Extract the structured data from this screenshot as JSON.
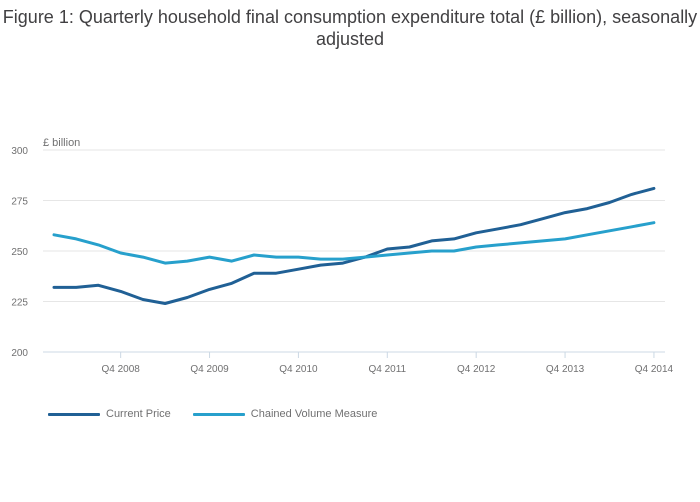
{
  "chart_data": {
    "type": "line",
    "title": "Figure 1: Quarterly household final consumption expenditure total (£ billion), seasonally adjusted",
    "ylabel": "£ billion",
    "xlabel": "",
    "ylim": [
      200,
      300
    ],
    "yticks": [
      200,
      225,
      250,
      275,
      300
    ],
    "grid": true,
    "legend_position": "bottom-left",
    "x": [
      "Q1 2008",
      "Q2 2008",
      "Q3 2008",
      "Q4 2008",
      "Q1 2009",
      "Q2 2009",
      "Q3 2009",
      "Q4 2009",
      "Q1 2010",
      "Q2 2010",
      "Q3 2010",
      "Q4 2010",
      "Q1 2011",
      "Q2 2011",
      "Q3 2011",
      "Q4 2011",
      "Q1 2012",
      "Q2 2012",
      "Q3 2012",
      "Q4 2012",
      "Q1 2013",
      "Q2 2013",
      "Q3 2013",
      "Q4 2013",
      "Q1 2014",
      "Q2 2014",
      "Q3 2014",
      "Q4 2014"
    ],
    "xtick_labels": [
      "Q4 2008",
      "Q4 2009",
      "Q4 2010",
      "Q4 2011",
      "Q4 2012",
      "Q4 2013",
      "Q4 2014"
    ],
    "series": [
      {
        "name": "Current Price",
        "color": "#206095",
        "values": [
          232,
          232,
          233,
          230,
          226,
          224,
          227,
          231,
          234,
          239,
          239,
          241,
          243,
          244,
          247,
          251,
          252,
          255,
          256,
          259,
          261,
          263,
          266,
          269,
          271,
          274,
          278,
          281
        ]
      },
      {
        "name": "Chained Volume Measure",
        "color": "#27a0cc",
        "values": [
          258,
          256,
          253,
          249,
          247,
          244,
          245,
          247,
          245,
          248,
          247,
          247,
          246,
          246,
          247,
          248,
          249,
          250,
          250,
          252,
          253,
          254,
          255,
          256,
          258,
          260,
          262,
          264
        ]
      }
    ]
  },
  "legend": {
    "items": [
      {
        "label": "Current Price"
      },
      {
        "label": "Chained Volume Measure"
      }
    ]
  }
}
